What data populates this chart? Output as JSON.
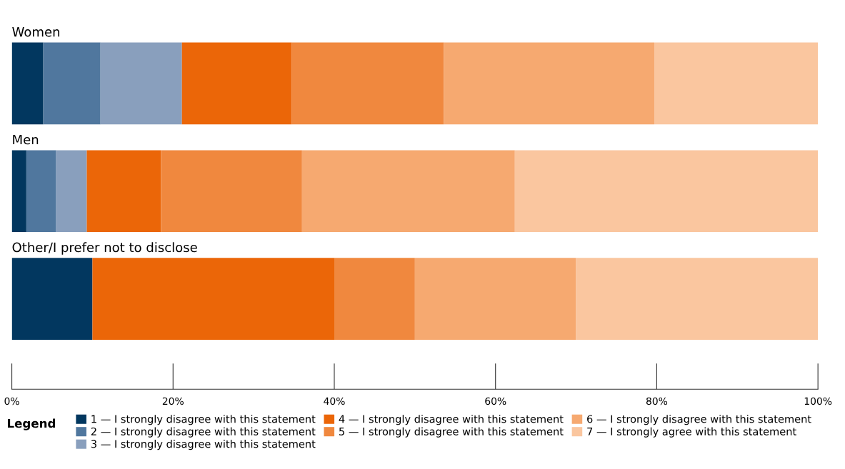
{
  "chart_data": {
    "type": "bar",
    "orientation": "horizontal",
    "stacked": true,
    "categories": [
      "Women",
      "Men",
      "Other/I prefer not to disclose"
    ],
    "series": [
      {
        "name": "1 — I strongly disagree with this statement",
        "color": "#02375f",
        "values": [
          3.9,
          1.8,
          10
        ]
      },
      {
        "name": "2 — I strongly disagree with this statement",
        "color": "#50779e",
        "values": [
          7.1,
          3.7,
          0
        ]
      },
      {
        "name": "3 — I strongly disagree with this statement",
        "color": "#899fbd",
        "values": [
          10.1,
          3.8,
          0
        ]
      },
      {
        "name": "4 — I strongly disagree with this statement",
        "color": "#eb6608",
        "values": [
          13.6,
          9.2,
          30
        ]
      },
      {
        "name": "5 — I strongly disagree with this statement",
        "color": "#f0883e",
        "values": [
          18.9,
          17.5,
          10
        ]
      },
      {
        "name": "6 — I strongly disagree with this statement",
        "color": "#f6a970",
        "values": [
          26.1,
          26.4,
          20
        ]
      },
      {
        "name": "7 — I strongly agree with this statement",
        "color": "#fac69f",
        "values": [
          20.3,
          37.6,
          30
        ]
      }
    ],
    "xlim": [
      0,
      100
    ],
    "xticks": [
      {
        "value": 0,
        "label": "0%"
      },
      {
        "value": 20,
        "label": "20%"
      },
      {
        "value": 40,
        "label": "40%"
      },
      {
        "value": 60,
        "label": "60%"
      },
      {
        "value": 80,
        "label": "80%"
      },
      {
        "value": 100,
        "label": "100%"
      }
    ],
    "legend": "bottom",
    "legend_title": "Legend",
    "grid": false
  }
}
